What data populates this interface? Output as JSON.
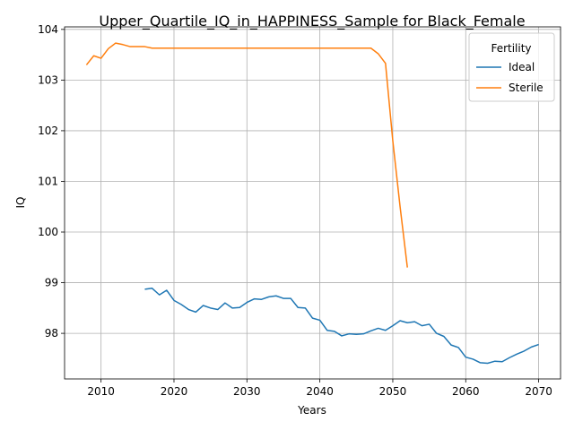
{
  "chart_data": {
    "type": "line",
    "title": "Upper_Quartile_IQ_in_HAPPINESS_Sample for Black_Female",
    "xlabel": "Years",
    "ylabel": "IQ",
    "xlim": [
      2005,
      2073
    ],
    "ylim": [
      97.1,
      104.05
    ],
    "xticks": [
      2010,
      2020,
      2030,
      2040,
      2050,
      2060,
      2070
    ],
    "yticks": [
      98,
      99,
      100,
      101,
      102,
      103,
      104
    ],
    "grid": true,
    "legend": {
      "title": "Fertility",
      "placement": "top-right"
    },
    "series": [
      {
        "name": "Ideal",
        "color": "#1f77b4",
        "x": [
          2016,
          2017,
          2018,
          2019,
          2020,
          2021,
          2022,
          2023,
          2024,
          2025,
          2026,
          2027,
          2028,
          2029,
          2030,
          2031,
          2032,
          2033,
          2034,
          2035,
          2036,
          2037,
          2038,
          2039,
          2040,
          2041,
          2042,
          2043,
          2044,
          2045,
          2046,
          2047,
          2048,
          2049,
          2050,
          2051,
          2052,
          2053,
          2054,
          2055,
          2056,
          2057,
          2058,
          2059,
          2060,
          2061,
          2062,
          2063,
          2064,
          2065,
          2066,
          2067,
          2068,
          2069,
          2070
        ],
        "y": [
          98.87,
          98.89,
          98.76,
          98.85,
          98.65,
          98.57,
          98.47,
          98.42,
          98.55,
          98.5,
          98.47,
          98.6,
          98.5,
          98.51,
          98.61,
          98.68,
          98.67,
          98.72,
          98.74,
          98.69,
          98.69,
          98.51,
          98.5,
          98.3,
          98.26,
          98.06,
          98.04,
          97.95,
          97.99,
          97.98,
          97.99,
          98.05,
          98.1,
          98.06,
          98.15,
          98.25,
          98.21,
          98.23,
          98.15,
          98.18,
          98.0,
          97.94,
          97.77,
          97.72,
          97.53,
          97.49,
          97.42,
          97.41,
          97.45,
          97.44,
          97.52,
          97.59,
          97.65,
          97.73,
          97.78
        ]
      },
      {
        "name": "Sterile",
        "color": "#ff7f0e",
        "x": [
          2008,
          2009,
          2010,
          2011,
          2012,
          2013,
          2014,
          2015,
          2016,
          2017,
          2018,
          2019,
          2020,
          2021,
          2022,
          2023,
          2024,
          2025,
          2026,
          2027,
          2028,
          2029,
          2030,
          2031,
          2032,
          2033,
          2034,
          2035,
          2036,
          2037,
          2038,
          2039,
          2040,
          2041,
          2042,
          2043,
          2044,
          2045,
          2046,
          2047,
          2048,
          2049,
          2050,
          2051,
          2052
        ],
        "y": [
          103.3,
          103.48,
          103.43,
          103.62,
          103.73,
          103.7,
          103.66,
          103.66,
          103.66,
          103.63,
          103.63,
          103.63,
          103.63,
          103.63,
          103.63,
          103.63,
          103.63,
          103.63,
          103.63,
          103.63,
          103.63,
          103.63,
          103.63,
          103.63,
          103.63,
          103.63,
          103.63,
          103.63,
          103.63,
          103.63,
          103.63,
          103.63,
          103.63,
          103.63,
          103.63,
          103.63,
          103.63,
          103.63,
          103.63,
          103.63,
          103.52,
          103.33,
          101.8,
          100.5,
          99.3
        ]
      }
    ]
  }
}
